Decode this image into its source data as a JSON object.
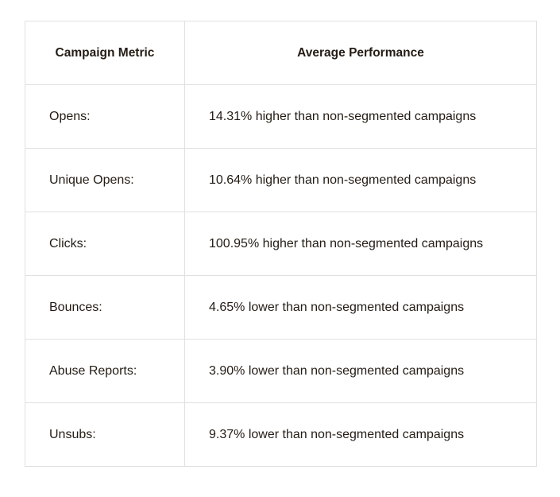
{
  "table": {
    "headers": {
      "metric": "Campaign Metric",
      "performance": "Average Performance"
    },
    "rows": [
      {
        "metric": "Opens:",
        "performance": "14.31% higher than non-segmented campaigns"
      },
      {
        "metric": "Unique Opens:",
        "performance": "10.64% higher than non-segmented campaigns"
      },
      {
        "metric": "Clicks:",
        "performance": "100.95% higher than non-segmented campaigns"
      },
      {
        "metric": "Bounces:",
        "performance": "4.65% lower than non-segmented campaigns"
      },
      {
        "metric": "Abuse Reports:",
        "performance": "3.90% lower than non-segmented campaigns"
      },
      {
        "metric": "Unsubs:",
        "performance": "9.37% lower than non-segmented campaigns"
      }
    ]
  }
}
